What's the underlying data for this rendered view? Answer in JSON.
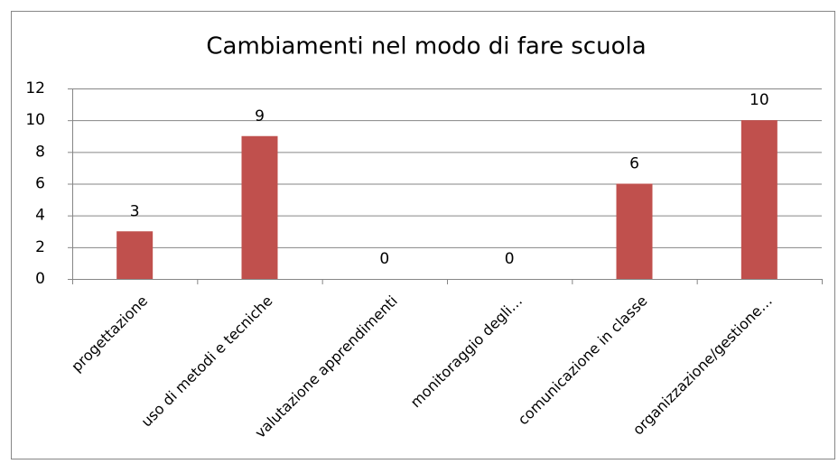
{
  "chart_data": {
    "type": "bar",
    "title": "Cambiamenti nel modo di fare scuola",
    "categories": [
      "progettazione",
      "uso di metodi e tecniche",
      "valutazione apprendimenti",
      "monitoraggio degli…",
      "comunicazione in classe",
      "organizzazione/gestione…"
    ],
    "values": [
      3,
      9,
      0,
      0,
      6,
      10
    ],
    "color": "#c0504d",
    "ylim": [
      0,
      12
    ],
    "yticks": [
      0,
      2,
      4,
      6,
      8,
      10,
      12
    ],
    "grid": true,
    "data_labels": true
  }
}
